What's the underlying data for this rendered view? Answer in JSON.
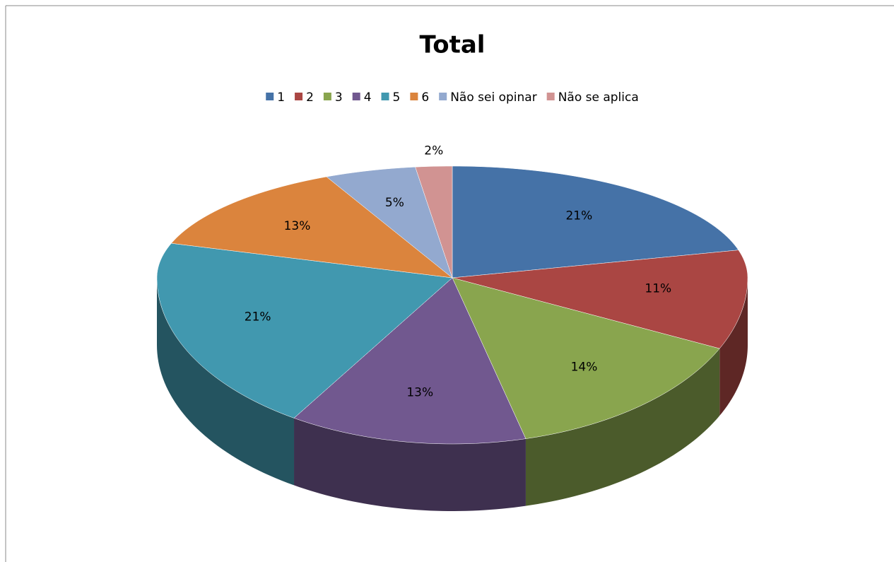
{
  "chart_data": {
    "type": "pie",
    "title": "Total",
    "categories": [
      "1",
      "2",
      "3",
      "4",
      "5",
      "6",
      "Não sei opinar",
      "Não se aplica"
    ],
    "values": [
      21,
      11,
      14,
      13,
      21,
      13,
      5,
      2
    ],
    "value_labels": [
      "21%",
      "11%",
      "14%",
      "13%",
      "21%",
      "13%",
      "5%",
      "2%"
    ],
    "colors": [
      "#4572a7",
      "#aa4643",
      "#89a54e",
      "#71588f",
      "#4198af",
      "#db843d",
      "#93a9cf",
      "#d19392"
    ],
    "legend": "top"
  }
}
